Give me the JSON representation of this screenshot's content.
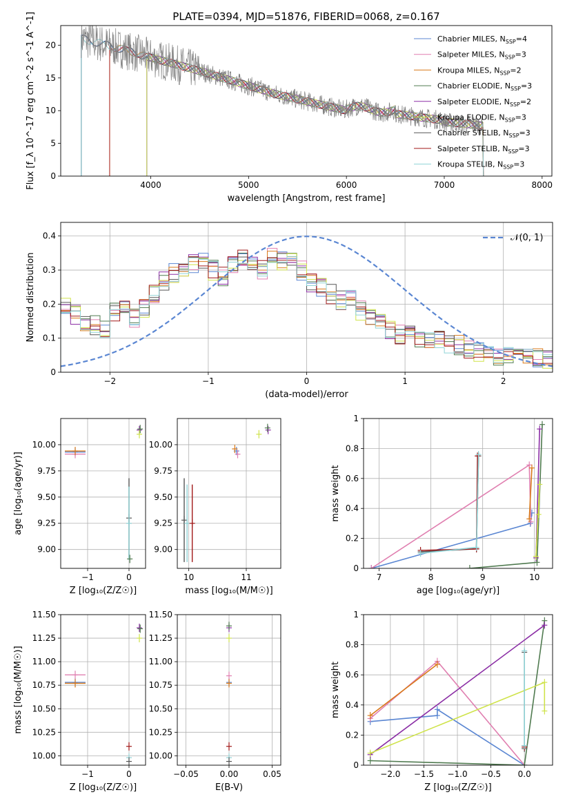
{
  "figure": {
    "title": "PLATE=0394, MJD=51876, FIBERID=0068, z=0.167"
  },
  "legend": {
    "entries": [
      {
        "name": "Chabrier MILES, N",
        "sub": "SSP",
        "rest": "=4",
        "color": "#5a86d2"
      },
      {
        "name": "Salpeter MILES, N",
        "sub": "SSP",
        "rest": "=3",
        "color": "#e07fb0"
      },
      {
        "name": "Kroupa MILES, N",
        "sub": "SSP",
        "rest": "=2",
        "color": "#d97a1a"
      },
      {
        "name": "Chabrier ELODIE, N",
        "sub": "SSP",
        "rest": "=3",
        "color": "#4f7a4f"
      },
      {
        "name": "Salpeter ELODIE, N",
        "sub": "SSP",
        "rest": "=2",
        "color": "#8b2ea5"
      },
      {
        "name": "Kroupa ELODIE, N",
        "sub": "SSP",
        "rest": "=3",
        "color": "#cfe34a"
      },
      {
        "name": "Chabrier STELIB, N",
        "sub": "SSP",
        "rest": "=3",
        "color": "#555555"
      },
      {
        "name": "Salpeter STELIB, N",
        "sub": "SSP",
        "rest": "=3",
        "color": "#a01818"
      },
      {
        "name": "Kroupa STELIB, N",
        "sub": "SSP",
        "rest": "=3",
        "color": "#8fd3d6"
      }
    ]
  },
  "chart_data": [
    {
      "id": "spectrum",
      "type": "line",
      "title": "PLATE=0394, MJD=51876, FIBERID=0068, z=0.167",
      "xlabel": "wavelength [Angstrom, rest frame]",
      "ylabel": "Flux [f_λ 10^-17 erg cm^-2 s^-1 A^-1]",
      "xlim": [
        3080,
        8100
      ],
      "ylim": [
        0,
        23
      ],
      "xticks": [
        4000,
        5000,
        6000,
        7000,
        8000
      ],
      "yticks": [
        0,
        5,
        10,
        15,
        20
      ],
      "grid": false,
      "legend": "top-right",
      "data_color": "#808080",
      "model_start": [
        3290,
        3580,
        3580,
        3960,
        3960,
        3960,
        3290,
        3580,
        3290
      ],
      "model_end": 7400
    },
    {
      "id": "residuals",
      "type": "line",
      "xlabel": "(data-model)/error",
      "ylabel": "Normed distribution",
      "xlim": [
        -2.5,
        2.5
      ],
      "ylim": [
        0,
        0.44
      ],
      "xticks": [
        -2,
        -1,
        0,
        1,
        2
      ],
      "yticks": [
        0.0,
        0.1,
        0.2,
        0.3,
        0.4
      ],
      "grid": true,
      "legend": "top-right",
      "gaussian_label": "𝒩(0, 1)",
      "gaussian_color": "#5a86d2",
      "bins": [
        -2.5,
        2.5,
        50
      ],
      "profile": [
        0.19,
        0.17,
        0.15,
        0.14,
        0.13,
        0.18,
        0.18,
        0.16,
        0.19,
        0.23,
        0.27,
        0.29,
        0.31,
        0.32,
        0.33,
        0.3,
        0.28,
        0.31,
        0.34,
        0.32,
        0.3,
        0.34,
        0.33,
        0.32,
        0.3,
        0.26,
        0.25,
        0.23,
        0.21,
        0.22,
        0.18,
        0.17,
        0.14,
        0.12,
        0.11,
        0.11,
        0.1,
        0.1,
        0.1,
        0.08,
        0.08,
        0.07,
        0.06,
        0.06,
        0.05,
        0.05,
        0.04,
        0.04,
        0.04,
        0.04
      ]
    },
    {
      "id": "age-vs-Z",
      "type": "scatter",
      "xlabel": "Z [log₁₀(Z/Z☉)]",
      "ylabel": "age [log₁₀(age/yr)]",
      "xlim": [
        -1.65,
        0.4
      ],
      "ylim": [
        8.82,
        10.25
      ],
      "xticks": [
        -1,
        0
      ],
      "yticks": [
        9.0,
        9.25,
        9.5,
        9.75,
        10.0
      ],
      "ytick_labels": [
        "9.00",
        "9.25",
        "9.50",
        "9.75",
        "10.00"
      ],
      "grid": true,
      "points": [
        {
          "x": -1.3,
          "y": 9.93,
          "xerr": 0.25,
          "c": 0
        },
        {
          "x": -1.3,
          "y": 9.91,
          "xerr": 0.25,
          "c": 1
        },
        {
          "x": -1.3,
          "y": 9.94,
          "xerr": 0.25,
          "c": 2
        },
        {
          "x": 0.0,
          "y": 9.3,
          "yerr": 0.38,
          "c": 6
        },
        {
          "x": 0.0,
          "y": 9.25,
          "yerr": 0.35,
          "c": 8
        },
        {
          "x": 0.02,
          "y": 8.91,
          "c": 3
        },
        {
          "x": 0.25,
          "y": 10.14,
          "c": 4
        },
        {
          "x": 0.25,
          "y": 10.1,
          "c": 5
        },
        {
          "x": 0.27,
          "y": 10.15,
          "c": 3
        }
      ]
    },
    {
      "id": "age-vs-mass",
      "type": "scatter",
      "xlabel": "mass [log₁₀(M/M☉)]",
      "ylabel": "",
      "xlim": [
        9.8,
        11.6
      ],
      "ylim": [
        8.82,
        10.25
      ],
      "xticks": [
        10,
        11
      ],
      "yticks": [
        9.0,
        9.25,
        9.5,
        9.75,
        10.0
      ],
      "ytick_labels": [
        "9.00",
        "9.25",
        "9.50",
        "9.75",
        "10.00"
      ],
      "grid": true,
      "points": [
        {
          "x": 10.83,
          "y": 9.94,
          "c": 0
        },
        {
          "x": 10.85,
          "y": 9.91,
          "c": 1
        },
        {
          "x": 10.8,
          "y": 9.96,
          "c": 2
        },
        {
          "x": 9.92,
          "y": 9.28,
          "yerr": 0.4,
          "c": 6
        },
        {
          "x": 9.97,
          "y": 9.25,
          "yerr": 0.37,
          "c": 8
        },
        {
          "x": 10.06,
          "y": 9.25,
          "yerr": 0.37,
          "c": 7
        },
        {
          "x": 11.22,
          "y": 10.1,
          "c": 5
        },
        {
          "x": 11.38,
          "y": 10.14,
          "c": 4
        },
        {
          "x": 11.37,
          "y": 10.16,
          "c": 3
        }
      ]
    },
    {
      "id": "massweight-vs-age",
      "type": "line",
      "xlabel": "age [log₁₀(age/yr)]",
      "ylabel": "mass weight",
      "xlim": [
        6.7,
        10.35
      ],
      "ylim": [
        0,
        1
      ],
      "xticks": [
        7,
        8,
        9,
        10
      ],
      "yticks": [
        0.0,
        0.2,
        0.4,
        0.6,
        0.8,
        1.0
      ],
      "grid": true,
      "series": [
        {
          "c": 0,
          "points": [
            [
              6.85,
              0
            ],
            [
              9.92,
              0.3
            ],
            [
              9.95,
              0.37
            ]
          ]
        },
        {
          "c": 1,
          "points": [
            [
              6.85,
              0
            ],
            [
              9.9,
              0.69
            ],
            [
              9.93,
              0.31
            ]
          ]
        },
        {
          "c": 2,
          "points": [
            [
              9.9,
              0.33
            ],
            [
              9.95,
              0.67
            ]
          ]
        },
        {
          "c": 3,
          "points": [
            [
              8.75,
              0
            ],
            [
              10.05,
              0.04
            ],
            [
              10.15,
              0.96
            ]
          ]
        },
        {
          "c": 4,
          "points": [
            [
              10.03,
              0.07
            ],
            [
              10.1,
              0.93
            ]
          ]
        },
        {
          "c": 5,
          "points": [
            [
              10.03,
              0.08
            ],
            [
              10.1,
              0.56
            ],
            [
              10.08,
              0.36
            ]
          ]
        },
        {
          "c": 6,
          "points": [
            [
              7.8,
              0.11
            ],
            [
              8.88,
              0.13
            ],
            [
              8.92,
              0.75
            ]
          ]
        },
        {
          "c": 7,
          "points": [
            [
              7.8,
              0.12
            ],
            [
              8.88,
              0.13
            ],
            [
              8.9,
              0.75
            ]
          ]
        },
        {
          "c": 8,
          "points": [
            [
              7.8,
              0.1
            ],
            [
              8.88,
              0.14
            ],
            [
              8.92,
              0.76
            ]
          ]
        }
      ]
    },
    {
      "id": "mass-vs-Z",
      "type": "scatter",
      "xlabel": "Z [log₁₀(Z/Z☉)]",
      "ylabel": "mass [log₁₀(M/M☉)]",
      "xlim": [
        -1.65,
        0.4
      ],
      "ylim": [
        9.9,
        11.5
      ],
      "xticks": [
        -1,
        0
      ],
      "yticks": [
        10.0,
        10.25,
        10.5,
        10.75,
        11.0,
        11.25,
        11.5
      ],
      "ytick_labels": [
        "10.00",
        "10.25",
        "10.50",
        "10.75",
        "11.00",
        "11.25",
        "11.50"
      ],
      "grid": true,
      "points": [
        {
          "x": -1.3,
          "y": 10.78,
          "xerr": 0.25,
          "c": 0
        },
        {
          "x": -1.3,
          "y": 10.86,
          "xerr": 0.25,
          "c": 1
        },
        {
          "x": -1.3,
          "y": 10.77,
          "xerr": 0.25,
          "c": 2
        },
        {
          "x": 0.0,
          "y": 10.1,
          "c": 7
        },
        {
          "x": 0.0,
          "y": 9.98,
          "c": 8
        },
        {
          "x": 0.0,
          "y": 9.94,
          "c": 6
        },
        {
          "x": 0.25,
          "y": 11.36,
          "c": 4
        },
        {
          "x": 0.25,
          "y": 11.25,
          "c": 5
        },
        {
          "x": 0.27,
          "y": 11.35,
          "c": 3
        }
      ]
    },
    {
      "id": "mass-vs-EBV",
      "type": "scatter",
      "xlabel": "E(B-V)",
      "ylabel": "",
      "xlim": [
        -0.06,
        0.06
      ],
      "ylim": [
        9.9,
        11.5
      ],
      "xticks": [
        -0.05,
        0.0,
        0.05
      ],
      "xtick_labels": [
        "−0.05",
        "0.00",
        "0.05"
      ],
      "yticks": [
        10.0,
        10.25,
        10.5,
        10.75,
        11.0,
        11.25,
        11.5
      ],
      "ytick_labels": [
        "10.00",
        "10.25",
        "10.50",
        "10.75",
        "11.00",
        "11.25",
        "11.50"
      ],
      "grid": true,
      "points": [
        {
          "x": 0.0,
          "y": 10.78,
          "c": 0
        },
        {
          "x": 0.0,
          "y": 10.85,
          "c": 1
        },
        {
          "x": 0.0,
          "y": 10.77,
          "c": 2
        },
        {
          "x": 0.0,
          "y": 10.1,
          "c": 7
        },
        {
          "x": 0.0,
          "y": 9.98,
          "c": 8
        },
        {
          "x": 0.0,
          "y": 9.94,
          "c": 6
        },
        {
          "x": 0.0,
          "y": 11.36,
          "c": 4
        },
        {
          "x": 0.0,
          "y": 11.25,
          "c": 5
        },
        {
          "x": 0.0,
          "y": 11.38,
          "c": 3
        }
      ]
    },
    {
      "id": "massweight-vs-Z",
      "type": "line",
      "xlabel": "Z [log₁₀(Z/Z☉)]",
      "ylabel": "mass weight",
      "xlim": [
        -2.4,
        0.42
      ],
      "ylim": [
        0,
        1
      ],
      "xticks": [
        -2.0,
        -1.5,
        -1.0,
        -0.5,
        0.0
      ],
      "xtick_labels": [
        "−2.0",
        "−1.5",
        "−1.0",
        "−0.5",
        "0.0"
      ],
      "yticks": [
        0.0,
        0.2,
        0.4,
        0.6,
        0.8,
        1.0
      ],
      "grid": true,
      "series": [
        {
          "c": 0,
          "points": [
            [
              -2.3,
              0.29
            ],
            [
              -1.3,
              0.33
            ],
            [
              -1.3,
              0.37
            ],
            [
              0.0,
              0.0
            ]
          ]
        },
        {
          "c": 1,
          "points": [
            [
              -2.3,
              0.31
            ],
            [
              -1.3,
              0.69
            ],
            [
              0.0,
              0.0
            ]
          ]
        },
        {
          "c": 2,
          "points": [
            [
              -2.3,
              0.33
            ],
            [
              -1.3,
              0.67
            ]
          ]
        },
        {
          "c": 3,
          "points": [
            [
              -2.3,
              0.03
            ],
            [
              0.0,
              0.0
            ],
            [
              0.3,
              0.96
            ]
          ]
        },
        {
          "c": 4,
          "points": [
            [
              -2.3,
              0.07
            ],
            [
              0.3,
              0.93
            ]
          ]
        },
        {
          "c": 5,
          "points": [
            [
              -2.3,
              0.08
            ],
            [
              0.3,
              0.55
            ],
            [
              0.3,
              0.36
            ]
          ]
        },
        {
          "c": 6,
          "points": [
            [
              0.0,
              0.11
            ],
            [
              0.0,
              0.75
            ]
          ]
        },
        {
          "c": 7,
          "points": [
            [
              0.0,
              0.12
            ],
            [
              0.0,
              0.13
            ]
          ]
        },
        {
          "c": 8,
          "points": [
            [
              0.0,
              0.13
            ],
            [
              0.0,
              0.76
            ]
          ]
        }
      ]
    }
  ]
}
